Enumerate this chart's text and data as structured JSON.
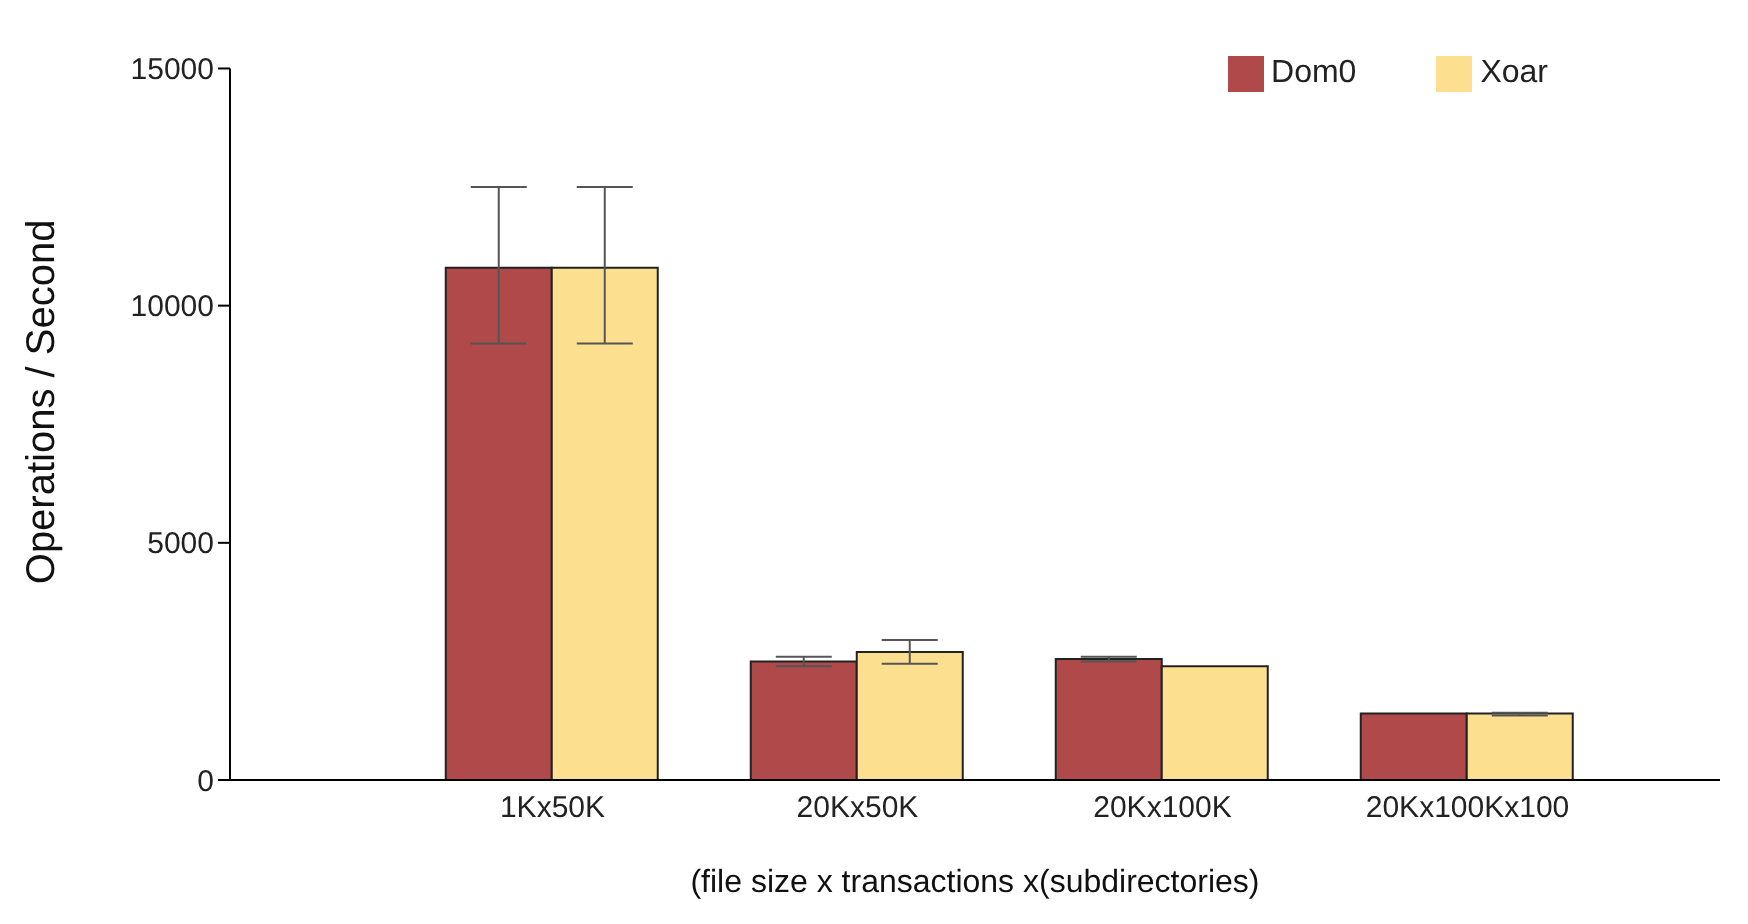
{
  "chart_data": {
    "type": "bar",
    "xlabel": "(file size x transactions x(subdirectories)",
    "ylabel": "Operations / Second",
    "categories": [
      "1Kx50K",
      "20Kx50K",
      "20Kx100K",
      "20Kx100Kx100"
    ],
    "series": [
      {
        "name": "Dom0",
        "color": "#b04a4a",
        "values": [
          10800,
          2500,
          2550,
          1400
        ],
        "errors": [
          [
            9200,
            12500
          ],
          [
            2400,
            2600
          ],
          [
            2500,
            2600
          ],
          null
        ]
      },
      {
        "name": "Xoar",
        "color": "#fde08f",
        "values": [
          10800,
          2700,
          2400,
          1400
        ],
        "errors": [
          [
            9200,
            12500
          ],
          [
            2450,
            2950
          ],
          null,
          [
            1360,
            1420
          ]
        ]
      }
    ],
    "ylim": [
      0,
      15000
    ],
    "yticks": [
      0,
      5000,
      10000,
      15000
    ],
    "grid": false,
    "legend": "top right"
  }
}
